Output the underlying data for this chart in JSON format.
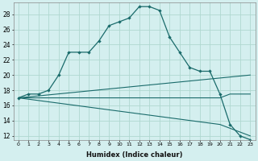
{
  "xlabel": "Humidex (Indice chaleur)",
  "background_color": "#d4efef",
  "grid_color": "#b0d8d0",
  "line_color": "#1a6b6b",
  "xlim": [
    -0.5,
    23.5
  ],
  "ylim": [
    11.5,
    29.5
  ],
  "yticks": [
    12,
    14,
    16,
    18,
    20,
    22,
    24,
    26,
    28
  ],
  "xticks": [
    0,
    1,
    2,
    3,
    4,
    5,
    6,
    7,
    8,
    9,
    10,
    11,
    12,
    13,
    14,
    15,
    16,
    17,
    18,
    19,
    20,
    21,
    22,
    23
  ],
  "series1_x": [
    0,
    1,
    2,
    3,
    4,
    5,
    6,
    7,
    8,
    9,
    10,
    11,
    12,
    13,
    14,
    15,
    16,
    17,
    18,
    19,
    20,
    21,
    22,
    23
  ],
  "series1_y": [
    17.0,
    17.5,
    17.5,
    18.0,
    20.0,
    23.0,
    23.0,
    23.0,
    24.5,
    26.5,
    27.0,
    27.5,
    29.0,
    29.0,
    28.5,
    25.0,
    23.0,
    21.0,
    20.5,
    20.5,
    17.5,
    13.5,
    12.0,
    11.5
  ],
  "series2_x": [
    0,
    23
  ],
  "series2_y": [
    17.0,
    20.0
  ],
  "series3_x": [
    0,
    20,
    21,
    22,
    23
  ],
  "series3_y": [
    17.0,
    17.0,
    17.5,
    17.5,
    17.5
  ],
  "series4_x": [
    0,
    20,
    21,
    22,
    23
  ],
  "series4_y": [
    17.0,
    13.5,
    13.0,
    12.5,
    12.0
  ]
}
